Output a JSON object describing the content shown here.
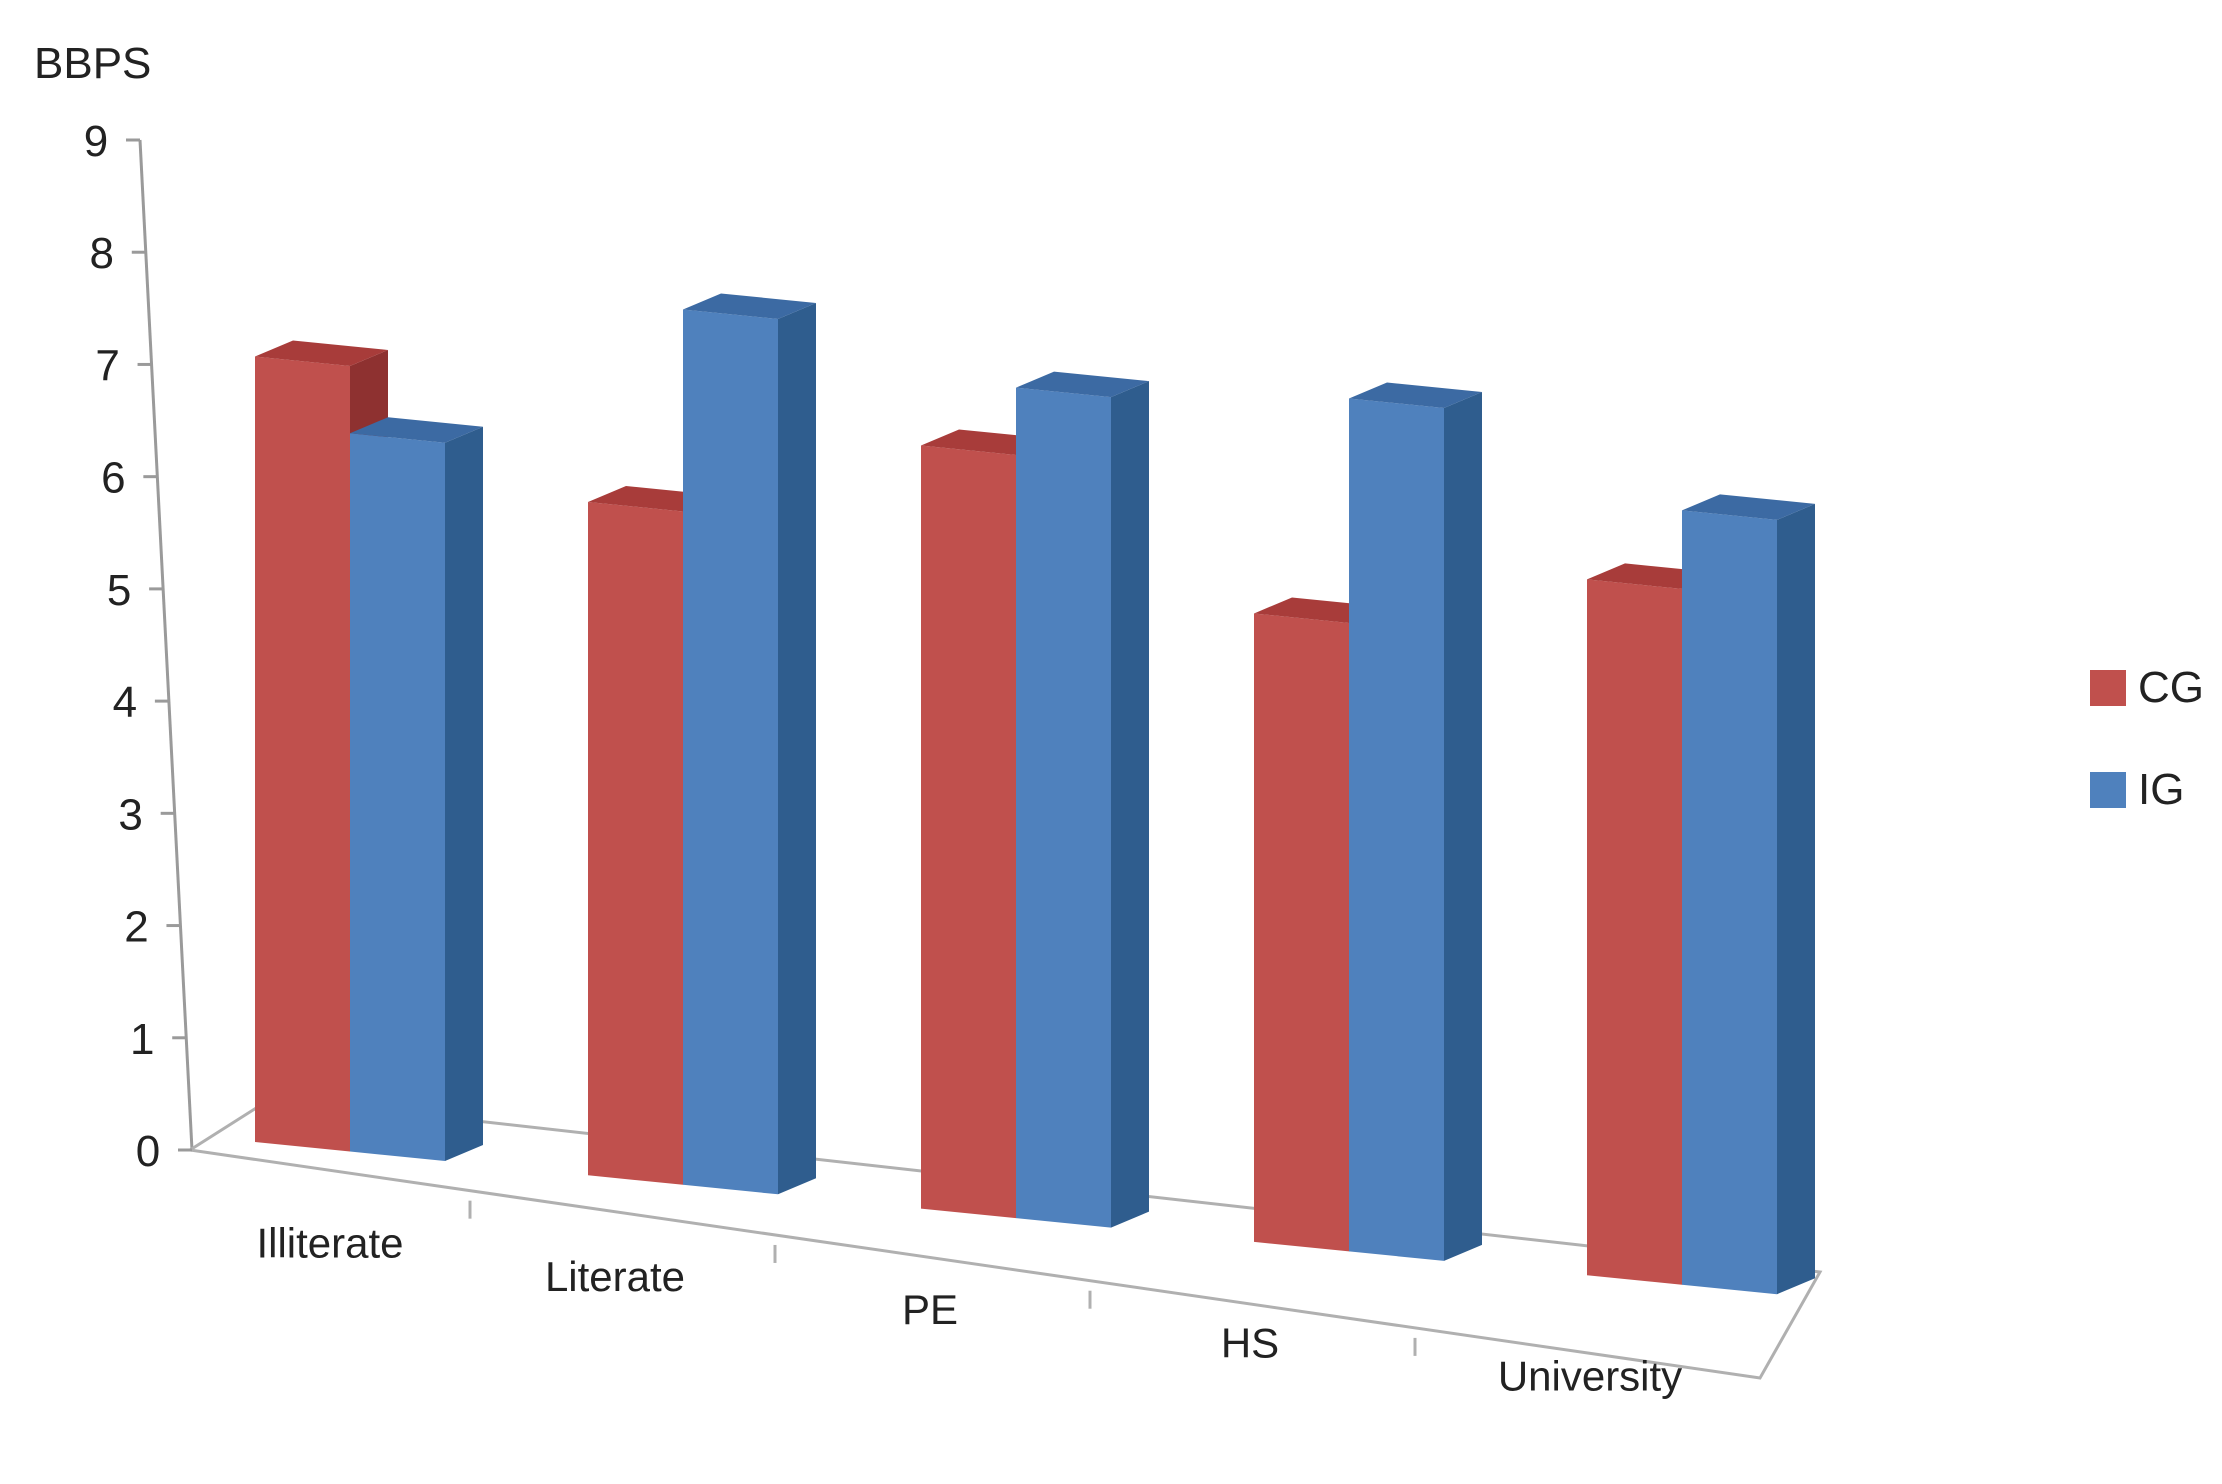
{
  "chart_data": {
    "type": "bar",
    "ylabel": "BBPS",
    "categories": [
      "Illiterate",
      "Literate",
      "PE",
      "HS",
      "University"
    ],
    "series": [
      {
        "name": "CG",
        "values": [
          7.0,
          6.0,
          6.8,
          5.6,
          6.2
        ]
      },
      {
        "name": "IG",
        "values": [
          6.4,
          7.8,
          7.4,
          7.6,
          6.9
        ]
      }
    ],
    "ylim": [
      0,
      9
    ],
    "yticks": [
      0,
      1,
      2,
      3,
      4,
      5,
      6,
      7,
      8,
      9
    ],
    "legend_position": "right",
    "grid": false,
    "style": "3d-clustered-column",
    "colors": {
      "CG": {
        "front": "#c0504d",
        "side": "#8e3130",
        "top": "#a83c3a"
      },
      "IG": {
        "front": "#4f81bd",
        "side": "#2f5d8e",
        "top": "#3c6aa3"
      }
    }
  }
}
